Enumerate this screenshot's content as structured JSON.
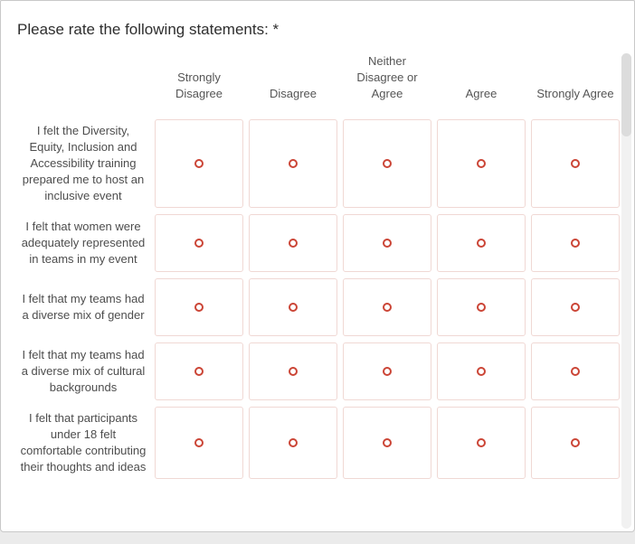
{
  "question": {
    "title": "Please rate the following statements: *"
  },
  "matrix": {
    "columns": [
      "Strongly Disagree",
      "Disagree",
      "Neither Disagree or Agree",
      "Agree",
      "Strongly Agree"
    ],
    "rows": [
      "I felt the Diversity, Equity, Inclusion and Accessibility training prepared me to host an inclusive event",
      "I felt that women were adequately represented in teams in my event",
      "I felt that my teams had a diverse mix of gender",
      "I felt that my teams had a diverse mix of cultural backgrounds",
      "I felt that participants under 18 felt comfortable contributing their thoughts and ideas"
    ],
    "selection_state": "none selected"
  },
  "colors": {
    "radio": "#cb4536",
    "cell_border": "#f0d8d4",
    "scrollbar_track": "#f1f1f1",
    "scrollbar_thumb": "#dcdcdc"
  }
}
